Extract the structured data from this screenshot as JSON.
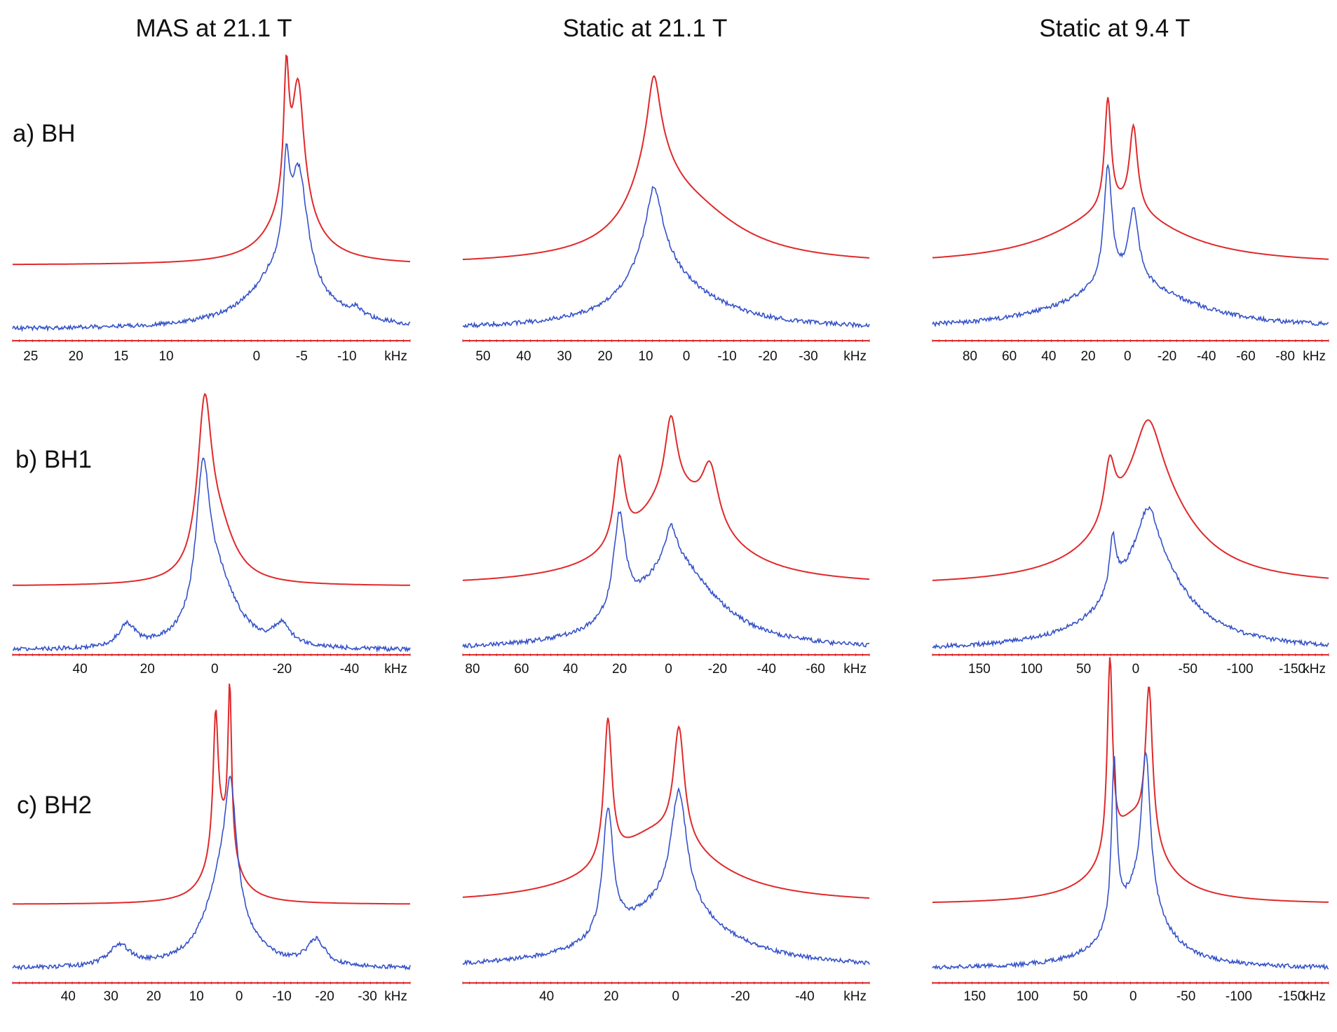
{
  "column_titles": [
    "MAS at 21.1 T",
    "Static at 21.1 T",
    "Static at 9.4 T"
  ],
  "row_labels": [
    "a) BH",
    "b) BH1",
    "c) BH2"
  ],
  "colors": {
    "simulated": "#e0292b",
    "experimental": "#3552c8",
    "axis": "#e0292b",
    "text": "#111111"
  },
  "chart_data": [
    {
      "id": "a-mas",
      "type": "line",
      "xlabel": "kHz",
      "xlim": [
        27,
        -17
      ],
      "ticks": [
        25,
        20,
        15,
        10,
        0,
        -5,
        -10
      ],
      "tick_labels": [
        "25",
        "20",
        "15",
        "10",
        "0",
        "-5",
        "-10"
      ],
      "series": [
        {
          "role": "simulated",
          "peaks": [
            [
              -4.6,
              0.8,
              0.62
            ],
            [
              -3.3,
              0.35,
              0.62
            ],
            [
              -4,
              3,
              0.28
            ]
          ]
        },
        {
          "role": "experimental",
          "peaks": [
            [
              -4.7,
              1.1,
              0.55
            ],
            [
              -3.3,
              0.4,
              0.45
            ],
            [
              -3.2,
              4.2,
              0.32
            ],
            [
              -11,
              0.8,
              0.04
            ]
          ]
        }
      ]
    },
    {
      "id": "a-static21",
      "type": "line",
      "xlabel": "kHz",
      "xlim": [
        55,
        -45
      ],
      "ticks": [
        50,
        40,
        30,
        20,
        10,
        0,
        -10,
        -20,
        -30
      ],
      "tick_labels": [
        "50",
        "40",
        "30",
        "20",
        "10",
        "0",
        "-10",
        "-20",
        "-30"
      ],
      "series": [
        {
          "role": "simulated",
          "peaks": [
            [
              8,
              1.8,
              0.35
            ],
            [
              8,
              6,
              0.38
            ],
            [
              0,
              16,
              0.27
            ]
          ]
        },
        {
          "role": "experimental",
          "peaks": [
            [
              8,
              2,
              0.28
            ],
            [
              8,
              6,
              0.32
            ],
            [
              3,
              16,
              0.17
            ]
          ]
        }
      ]
    },
    {
      "id": "a-static9",
      "type": "line",
      "xlabel": "kHz",
      "xlim": [
        99,
        -102
      ],
      "ticks": [
        80,
        60,
        40,
        20,
        0,
        -20,
        -40,
        -60,
        -80
      ],
      "tick_labels": [
        "80",
        "60",
        "40",
        "20",
        "0",
        "-20",
        "-40",
        "-60",
        "-80"
      ],
      "series": [
        {
          "role": "simulated",
          "peaks": [
            [
              10,
              2,
              0.55
            ],
            [
              -3,
              2.5,
              0.42
            ],
            [
              5,
              36,
              0.28
            ]
          ]
        },
        {
          "role": "experimental",
          "peaks": [
            [
              10,
              2.5,
              0.62
            ],
            [
              -3,
              3,
              0.38
            ],
            [
              0,
              36,
              0.25
            ]
          ]
        }
      ]
    },
    {
      "id": "b-mas",
      "type": "line",
      "xlabel": "kHz",
      "xlim": [
        60,
        -58
      ],
      "ticks": [
        40,
        20,
        0,
        -20,
        -40
      ],
      "tick_labels": [
        "40",
        "20",
        "0",
        "-20",
        "-40"
      ],
      "series": [
        {
          "role": "simulated",
          "peaks": [
            [
              3,
              2.5,
              0.82
            ],
            [
              -1,
              6,
              0.28
            ]
          ]
        },
        {
          "role": "experimental",
          "peaks": [
            [
              3.5,
              2.5,
              0.8
            ],
            [
              -1,
              7,
              0.35
            ],
            [
              26,
              3,
              0.12
            ],
            [
              -20,
              3,
              0.11
            ]
          ]
        }
      ]
    },
    {
      "id": "b-static21",
      "type": "line",
      "xlabel": "kHz",
      "xlim": [
        84,
        -82
      ],
      "ticks": [
        80,
        60,
        40,
        20,
        0,
        -20,
        -40,
        -60
      ],
      "tick_labels": [
        "80",
        "60",
        "40",
        "20",
        "0",
        "-20",
        "-40",
        "-60"
      ],
      "series": [
        {
          "role": "simulated",
          "peaks": [
            [
              20,
              2.5,
              0.45
            ],
            [
              -1,
              3,
              0.4
            ],
            [
              -17,
              4,
              0.3
            ],
            [
              -3,
              22,
              0.48
            ]
          ]
        },
        {
          "role": "experimental",
          "peaks": [
            [
              20,
              3,
              0.55
            ],
            [
              -1,
              3,
              0.2
            ],
            [
              -3,
              20,
              0.48
            ]
          ]
        }
      ]
    },
    {
      "id": "b-static9",
      "type": "line",
      "xlabel": "kHz",
      "xlim": [
        195,
        -185
      ],
      "ticks": [
        150,
        100,
        50,
        0,
        -50,
        -100,
        -150
      ],
      "tick_labels": [
        "150",
        "100",
        "50",
        "0",
        "-50",
        "-100",
        "-150"
      ],
      "series": [
        {
          "role": "simulated",
          "peaks": [
            [
              25,
              6,
              0.3
            ],
            [
              -12,
              15,
              0.32
            ],
            [
              -12,
              48,
              0.55
            ]
          ]
        },
        {
          "role": "experimental",
          "peaks": [
            [
              22,
              4,
              0.3
            ],
            [
              -12,
              12,
              0.28
            ],
            [
              -12,
              44,
              0.5
            ]
          ]
        }
      ]
    },
    {
      "id": "c-mas",
      "type": "line",
      "xlabel": "kHz",
      "xlim": [
        53,
        -40
      ],
      "ticks": [
        40,
        30,
        20,
        10,
        0,
        -10,
        -20,
        -30
      ],
      "tick_labels": [
        "40",
        "30",
        "20",
        "10",
        "0",
        "-10",
        "-20",
        "-30"
      ],
      "series": [
        {
          "role": "simulated",
          "peaks": [
            [
              5.5,
              0.7,
              0.65
            ],
            [
              2.2,
              0.5,
              0.8
            ],
            [
              4,
              3.5,
              0.35
            ]
          ]
        },
        {
          "role": "experimental",
          "peaks": [
            [
              2,
              1.5,
              0.5
            ],
            [
              3.5,
              5,
              0.45
            ],
            [
              28,
              3,
              0.1
            ],
            [
              -18,
              2.5,
              0.12
            ]
          ]
        }
      ]
    },
    {
      "id": "c-static21",
      "type": "line",
      "xlabel": "kHz",
      "xlim": [
        66,
        -60
      ],
      "ticks": [
        40,
        20,
        0,
        -20,
        -40
      ],
      "tick_labels": [
        "40",
        "20",
        "0",
        "-20",
        "-40"
      ],
      "series": [
        {
          "role": "simulated",
          "peaks": [
            [
              21,
              1.5,
              0.7
            ],
            [
              -1,
              2,
              0.55
            ],
            [
              5,
              20,
              0.35
            ]
          ]
        },
        {
          "role": "experimental",
          "peaks": [
            [
              21,
              2,
              0.6
            ],
            [
              -1,
              3,
              0.55
            ],
            [
              2,
              20,
              0.3
            ]
          ]
        }
      ]
    },
    {
      "id": "c-static9",
      "type": "line",
      "xlabel": "kHz",
      "xlim": [
        190,
        -185
      ],
      "ticks": [
        150,
        100,
        50,
        0,
        -50,
        -100,
        -150
      ],
      "tick_labels": [
        "150",
        "100",
        "50",
        "0",
        "-50",
        "-100",
        "-150"
      ],
      "series": [
        {
          "role": "simulated",
          "peaks": [
            [
              22,
              3,
              0.95
            ],
            [
              -15,
              4,
              0.75
            ],
            [
              0,
              30,
              0.4
            ]
          ]
        },
        {
          "role": "experimental",
          "peaks": [
            [
              18,
              3,
              0.78
            ],
            [
              -12,
              5,
              0.7
            ],
            [
              -5,
              28,
              0.35
            ]
          ]
        }
      ]
    }
  ]
}
